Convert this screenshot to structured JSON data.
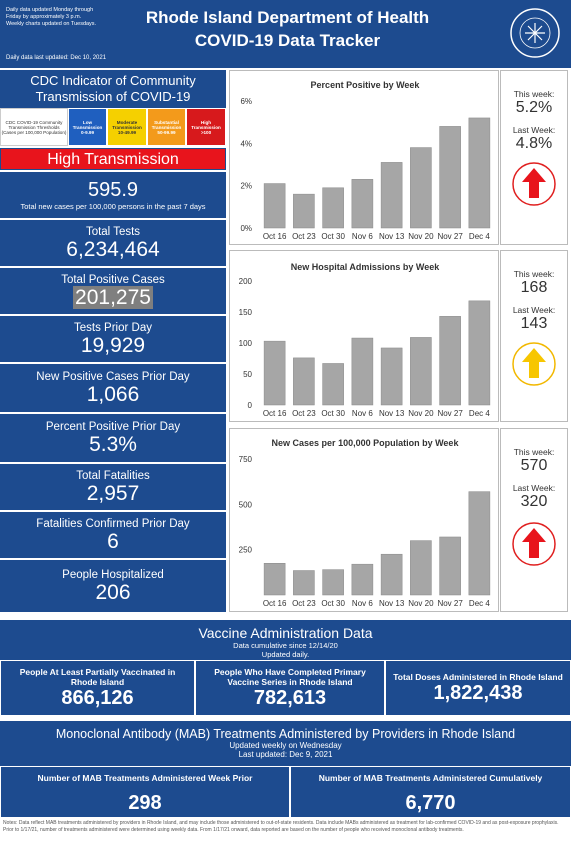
{
  "header": {
    "note_lines": [
      "Daily data updated Monday through",
      "Friday by approximately 3 p.m.",
      "Weekly charts updated on Tuesdays."
    ],
    "last_updated": "Daily data last updated: Dec 10, 2021",
    "title_lines": [
      "Rhode Island Department of Health",
      "COVID-19 Data Tracker"
    ]
  },
  "cdc": {
    "title": "CDC Indicator of Community Transmission of COVID-19",
    "thresholds_label": "CDC COVID-19 Community Transmission Thresholds (Cases per 100,000 Population)",
    "levels": [
      {
        "name": "Low Transmission",
        "range": "0-9.99"
      },
      {
        "name": "Moderate Transmission",
        "range": "10-49.99"
      },
      {
        "name": "Substantial Transmission",
        "range": "50-99.99"
      },
      {
        "name": "High Transmission",
        "range": ">100"
      }
    ],
    "status": "High Transmission",
    "value": "595.9",
    "description": "Total new cases per 100,000 persons in the past 7 days"
  },
  "stats": [
    {
      "label": "Total Tests",
      "value": "6,234,464"
    },
    {
      "label": "Total Positive Cases",
      "value": "201,275"
    },
    {
      "label": "Tests Prior Day",
      "value": "19,929"
    },
    {
      "label": "New Positive Cases Prior Day",
      "value": "1,066"
    },
    {
      "label": "Percent Positive Prior Day",
      "value": "5.3%"
    },
    {
      "label": "Total Fatalities",
      "value": "2,957"
    },
    {
      "label": "Fatalities Confirmed Prior Day",
      "value": "6"
    },
    {
      "label": "People Hospitalized",
      "value": "206"
    }
  ],
  "chart_data": [
    {
      "type": "bar",
      "title": "Percent Positive by Week",
      "categories": [
        "Oct 16",
        "Oct 23",
        "Oct 30",
        "Nov 6",
        "Nov 13",
        "Nov 20",
        "Nov 27",
        "Dec 4"
      ],
      "values": [
        2.1,
        1.6,
        1.9,
        2.3,
        3.1,
        3.8,
        4.8,
        5.2
      ],
      "color": "#a6a6a6",
      "ylim": [
        0,
        6
      ],
      "yticks": [
        {
          "value": 0,
          "label": "0%"
        },
        {
          "value": 2,
          "label": "2%"
        },
        {
          "value": 4,
          "label": "4%"
        },
        {
          "value": 6,
          "label": "6%"
        }
      ],
      "grid": false
    },
    {
      "type": "bar",
      "title": "New Hospital Admissions by Week",
      "categories": [
        "Oct 16",
        "Oct 23",
        "Oct 30",
        "Nov 6",
        "Nov 13",
        "Nov 20",
        "Nov 27",
        "Dec 4"
      ],
      "values": [
        103,
        76,
        67,
        108,
        92,
        109,
        143,
        168
      ],
      "color": "#a6a6a6",
      "ylim": [
        0,
        200
      ],
      "yticks": [
        0,
        50,
        100,
        150,
        200
      ],
      "grid": false
    },
    {
      "type": "bar",
      "title": "New Cases per 100,000 Population by Week",
      "categories": [
        "Oct 16",
        "Oct 23",
        "Oct 30",
        "Nov 6",
        "Nov 13",
        "Nov 20",
        "Nov 27",
        "Dec 4"
      ],
      "values": [
        175,
        135,
        140,
        170,
        225,
        300,
        320,
        570
      ],
      "color": "#a6a6a6",
      "ylim": [
        0,
        750
      ],
      "yticks": [
        250,
        500,
        750
      ],
      "grid": false
    }
  ],
  "weekly_comparison": [
    {
      "this_week_label": "This week:",
      "this_week": "5.2%",
      "last_week_label": "Last Week:",
      "last_week": "4.8%"
    },
    {
      "this_week_label": "This week:",
      "this_week": "168",
      "last_week_label": "Last Week:",
      "last_week": "143"
    },
    {
      "this_week_label": "This week:",
      "this_week": "570",
      "last_week_label": "Last Week:",
      "last_week": "320"
    }
  ],
  "vaccine": {
    "title": "Vaccine Administration Data",
    "subtitle": "Data cumulative since 12/14/20",
    "update_note": "Updated daily.",
    "boxes": [
      {
        "label": "People At Least Partially Vaccinated in Rhode Island",
        "value": "866,126"
      },
      {
        "label": "People Who Have Completed Primary Vaccine Series in Rhode Island",
        "value": "782,613"
      },
      {
        "label": "Total Doses Administered in Rhode Island",
        "value": "1,822,438"
      }
    ]
  },
  "mab": {
    "title": "Monoclonal Antibody (MAB) Treatments Administered by Providers in Rhode Island",
    "update_note": "Updated weekly on Wednesday",
    "last_updated": "Last updated: Dec 9, 2021",
    "boxes": [
      {
        "label": "Number of MAB Treatments Administered Week Prior",
        "value": "298"
      },
      {
        "label": "Number of MAB Treatments Administered Cumulatively",
        "value": "6,770"
      }
    ]
  },
  "notes": "Notes: Data reflect MAB treatments administered by providers in Rhode Island, and may include those administered to out-of-state residents. Data include MABs administered as treatment for lab-confirmed COVID-19 and as post-exposure prophylaxis. Prior to 1/17/21, number of treatments administered were determined using weekly data. From 1/17/21 onward, data reported are based on the number of people who received monoclonal antibody treatments."
}
